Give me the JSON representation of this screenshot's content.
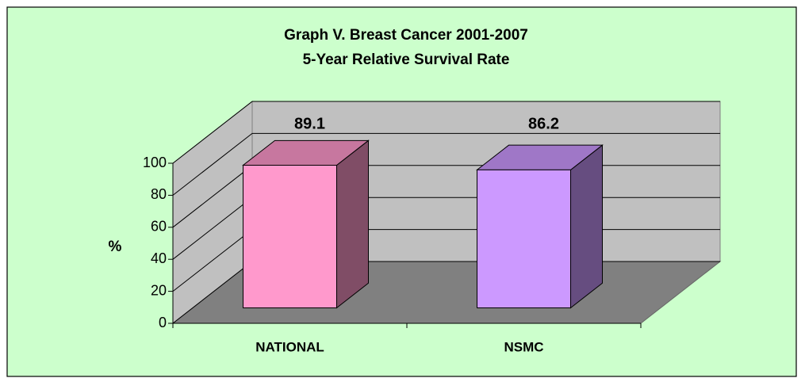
{
  "chart_data": {
    "type": "bar3d",
    "title": "Graph V. Breast Cancer 2001-2007",
    "subtitle": "5-Year Relative Survival Rate",
    "y_label": "%",
    "categories": [
      "NATIONAL",
      "NSMC"
    ],
    "values": [
      89.1,
      86.2
    ],
    "colors": [
      "#FF99CC",
      "#CC99FF"
    ],
    "ylim": [
      0,
      100
    ],
    "yticks": [
      0,
      20,
      40,
      60,
      80,
      100
    ],
    "grid": true
  }
}
